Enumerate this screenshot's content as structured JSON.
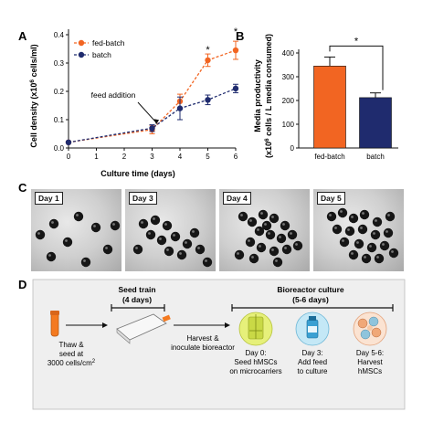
{
  "panel_labels": {
    "a": "A",
    "b": "B",
    "c": "C",
    "d": "D"
  },
  "chart_data": [
    {
      "type": "line",
      "xlabel": "Culture time (days)",
      "ylabel_main": "Cell density (x10",
      "ylabel_sup": "6",
      "ylabel_end": " cells/ml)",
      "xlim": [
        0,
        6
      ],
      "ylim": [
        0,
        0.4
      ],
      "x_ticks": [
        "0",
        "1",
        "2",
        "3",
        "4",
        "5",
        "6"
      ],
      "y_ticks": [
        "0.0",
        "0.1",
        "0.2",
        "0.3",
        "0.4"
      ],
      "legend_position": "top-left",
      "series": [
        {
          "name": "fed-batch",
          "color": "#f26522",
          "marker": "circle",
          "x": [
            0,
            3,
            4,
            5,
            6
          ],
          "y": [
            0.02,
            0.065,
            0.165,
            0.31,
            0.345
          ],
          "err": [
            0.003,
            0.015,
            0.025,
            0.022,
            0.032
          ]
        },
        {
          "name": "batch",
          "color": "#1f2b6e",
          "marker": "circle",
          "x": [
            0,
            3,
            4,
            5,
            6
          ],
          "y": [
            0.02,
            0.07,
            0.14,
            0.17,
            0.21
          ],
          "err": [
            0.003,
            0.012,
            0.04,
            0.017,
            0.015
          ]
        }
      ],
      "annotation": {
        "text": "feed addition",
        "x": 3.15,
        "y": 0.08
      },
      "significance": [
        {
          "x": 5,
          "label": "*"
        },
        {
          "x": 6,
          "label": "*"
        }
      ]
    },
    {
      "type": "bar",
      "categories": [
        "fed-batch",
        "batch"
      ],
      "values": [
        345,
        212
      ],
      "errors": [
        38,
        20
      ],
      "colors": [
        "#f26522",
        "#1f2b6e"
      ],
      "ylim": [
        0,
        400
      ],
      "y_ticks": [
        "0",
        "100",
        "200",
        "300",
        "400"
      ],
      "ylabel_line1": "Media productivity",
      "ylabel_line2_main": "(x10",
      "ylabel_line2_sup": "6",
      "ylabel_line2_end": " cells / L media consumed)",
      "significance_label": "*"
    }
  ],
  "micrographs": [
    {
      "label": "Day 1"
    },
    {
      "label": "Day 3"
    },
    {
      "label": "Day 4"
    },
    {
      "label": "Day 5"
    }
  ],
  "process": {
    "seed_train": {
      "title": "Seed train",
      "subtitle": "(4 days)"
    },
    "bioreactor": {
      "title": "Bioreactor culture",
      "subtitle": "(5-6 days)"
    },
    "step1": {
      "line1": "Thaw &",
      "line2": "seed at",
      "line3": "3000 cells/cm",
      "sup": "2"
    },
    "step2": {
      "line1": "Harvest &",
      "line2": "inoculate bioreactor"
    },
    "day0": {
      "line1": "Day 0:",
      "line2": "Seed hMSCs",
      "line3": "on microcarriers"
    },
    "day3": {
      "line1": "Day 3:",
      "line2": "Add feed",
      "line3": "to culture"
    },
    "day56": {
      "line1": "Day 5-6:",
      "line2": "Harvest",
      "line3": "hMSCs"
    }
  }
}
